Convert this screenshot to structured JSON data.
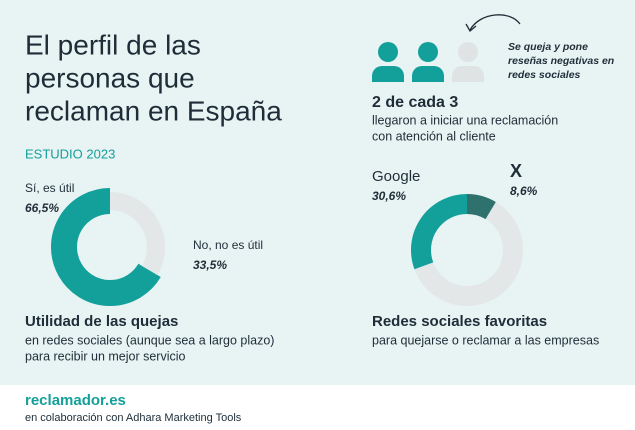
{
  "title_lines": [
    "El perfil de las",
    "personas que",
    "reclaman en España"
  ],
  "subtitle": "ESTUDIO 2023",
  "note_lines": [
    "Se queja y pone",
    "reseñas negativas en",
    "redes sociales"
  ],
  "stat": {
    "headline": "2 de cada 3",
    "text_lines": [
      "llegaron a iniciar una reclamación",
      "con atención al cliente"
    ]
  },
  "chart_data": [
    {
      "type": "pie",
      "categories": [
        "Sí, es útil",
        "No, no es útil"
      ],
      "values": [
        66.5,
        33.5
      ],
      "value_labels": [
        "66,5%",
        "33,5%"
      ],
      "colors": [
        "#13a09b",
        "#e3e7e8"
      ],
      "caption": "Utilidad de las quejas",
      "caption_lines": [
        "en redes sociales (aunque sea a largo plazo)",
        "para recibir un mejor servicio"
      ]
    },
    {
      "type": "pie",
      "categories": [
        "Google",
        "X"
      ],
      "values": [
        30.6,
        8.6
      ],
      "value_labels": [
        "30,6%",
        "8,6%"
      ],
      "colors": [
        "#13a09b",
        "#2f716d"
      ],
      "caption": "Redes sociales favoritas",
      "caption_lines": [
        "para quejarse o reclamar a las empresas"
      ]
    }
  ],
  "footer": {
    "brand": "reclamador.es",
    "credit": "en colaboración con Adhara Marketing Tools"
  }
}
